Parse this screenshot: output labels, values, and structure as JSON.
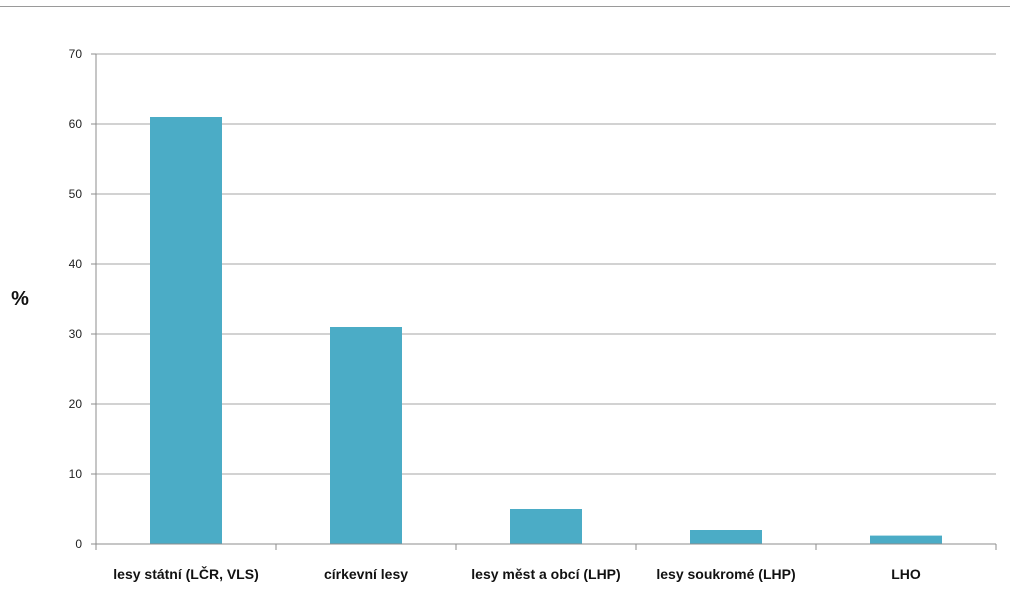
{
  "chart_data": {
    "type": "bar",
    "title": "",
    "xlabel": "",
    "ylabel": "%",
    "ylim": [
      0,
      70
    ],
    "yticks": [
      0,
      10,
      20,
      30,
      40,
      50,
      60,
      70
    ],
    "grid": true,
    "legend": "none",
    "categories": [
      "lesy státní (LČR, VLS)",
      "církevní lesy",
      "lesy měst a obcí (LHP)",
      "lesy soukromé (LHP)",
      "LHO"
    ],
    "values": [
      61,
      31,
      5,
      2,
      1.2
    ],
    "colors": {
      "bar": "#4BACC6",
      "grid": "#A6A6A6",
      "axis": "#8C8C8C",
      "text": "#111111"
    }
  }
}
